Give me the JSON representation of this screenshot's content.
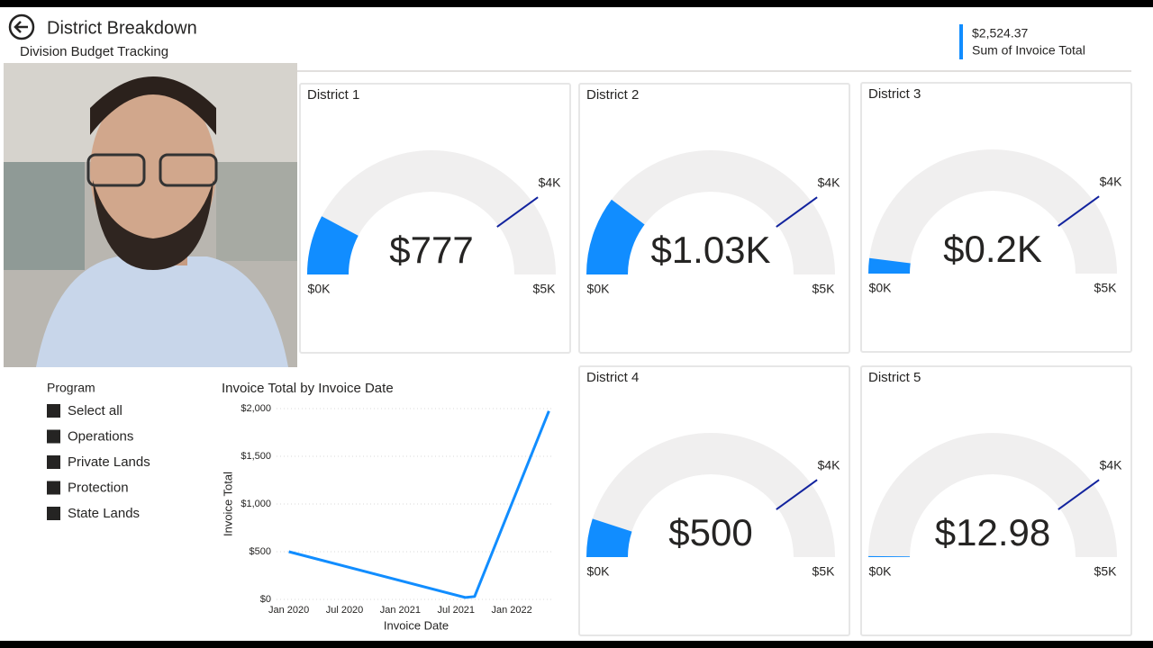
{
  "header": {
    "title": "District Breakdown",
    "subtitle": "Division Budget Tracking"
  },
  "kpi": {
    "value": "$2,524.37",
    "label": "Sum of Invoice Total"
  },
  "slicer": {
    "title": "Program",
    "items": [
      "Select all",
      "Operations",
      "Private Lands",
      "Protection",
      "State Lands"
    ]
  },
  "chart_data": [
    {
      "type": "gauge",
      "title": "District 1",
      "value": 777,
      "value_label": "$777",
      "color": "#118dff",
      "min": {
        "value": 0,
        "label": "$0K"
      },
      "max": {
        "value": 5000,
        "label": "$5K"
      },
      "target": {
        "value": 4000,
        "label": "$4K"
      }
    },
    {
      "type": "gauge",
      "title": "District 2",
      "value": 1030,
      "value_label": "$1.03K",
      "color": "#118dff",
      "min": {
        "value": 0,
        "label": "$0K"
      },
      "max": {
        "value": 5000,
        "label": "$5K"
      },
      "target": {
        "value": 4000,
        "label": "$4K"
      }
    },
    {
      "type": "gauge",
      "title": "District 3",
      "value": 200,
      "value_label": "$0.2K",
      "color": "#118dff",
      "min": {
        "value": 0,
        "label": "$0K"
      },
      "max": {
        "value": 5000,
        "label": "$5K"
      },
      "target": {
        "value": 4000,
        "label": "$4K"
      }
    },
    {
      "type": "gauge",
      "title": "District 4",
      "value": 500,
      "value_label": "$500",
      "color": "#118dff",
      "min": {
        "value": 0,
        "label": "$0K"
      },
      "max": {
        "value": 5000,
        "label": "$5K"
      },
      "target": {
        "value": 4000,
        "label": "$4K"
      }
    },
    {
      "type": "gauge",
      "title": "District 5",
      "value": 12.98,
      "value_label": "$12.98",
      "color": "#118dff",
      "min": {
        "value": 0,
        "label": "$0K"
      },
      "max": {
        "value": 5000,
        "label": "$5K"
      },
      "target": {
        "value": 4000,
        "label": "$4K"
      }
    },
    {
      "type": "line",
      "title": "Invoice Total by Invoice Date",
      "x_label": "Invoice Date",
      "y_label": "Invoice Total",
      "x": [
        "2020-01",
        "2021-08",
        "2021-09",
        "2022-05"
      ],
      "values": [
        500,
        20,
        30,
        1975
      ],
      "color": "#118dff",
      "xlim": [
        "2019-11",
        "2022-07"
      ],
      "xticks": [
        {
          "value": "2020-01",
          "label": "Jan 2020"
        },
        {
          "value": "2020-07",
          "label": "Jul 2020"
        },
        {
          "value": "2021-01",
          "label": "Jan 2021"
        },
        {
          "value": "2021-07",
          "label": "Jul 2021"
        },
        {
          "value": "2022-01",
          "label": "Jan 2022"
        }
      ],
      "ylim": [
        0,
        2000
      ],
      "yticks": [
        {
          "value": 0,
          "label": "$0"
        },
        {
          "value": 500,
          "label": "$500"
        },
        {
          "value": 1000,
          "label": "$1,000"
        },
        {
          "value": 1500,
          "label": "$1,500"
        },
        {
          "value": 2000,
          "label": "$2,000"
        }
      ],
      "grid": true
    }
  ]
}
